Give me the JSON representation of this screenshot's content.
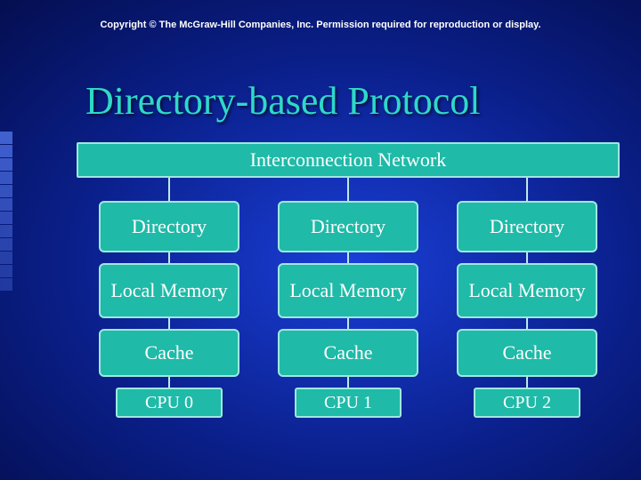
{
  "copyright": "Copyright © The McGraw-Hill Companies, Inc. Permission required for reproduction or display.",
  "title": "Directory-based Protocol",
  "diagram": {
    "type": "tree",
    "root_label": "Interconnection Network",
    "level_labels": [
      "Directory",
      "Local Memory",
      "Cache"
    ],
    "leaf_labels": [
      "CPU 0",
      "CPU 1",
      "CPU 2"
    ],
    "columns": 3,
    "node_fill": "#1fbaa8",
    "node_border": "#9fe8df",
    "node_text_color": "#ffffff",
    "connector_color": "#bfe8e3",
    "title_color": "#2fd8c8",
    "background_gradient": {
      "center": "#1a3fd8",
      "edge": "#000014"
    },
    "font_family": "Times New Roman",
    "title_fontsize": 44,
    "node_fontsize": 22,
    "cpu_fontsize": 20,
    "copyright_fontsize": 11
  },
  "side_square_count": 12,
  "side_square_color": "#4060d0"
}
